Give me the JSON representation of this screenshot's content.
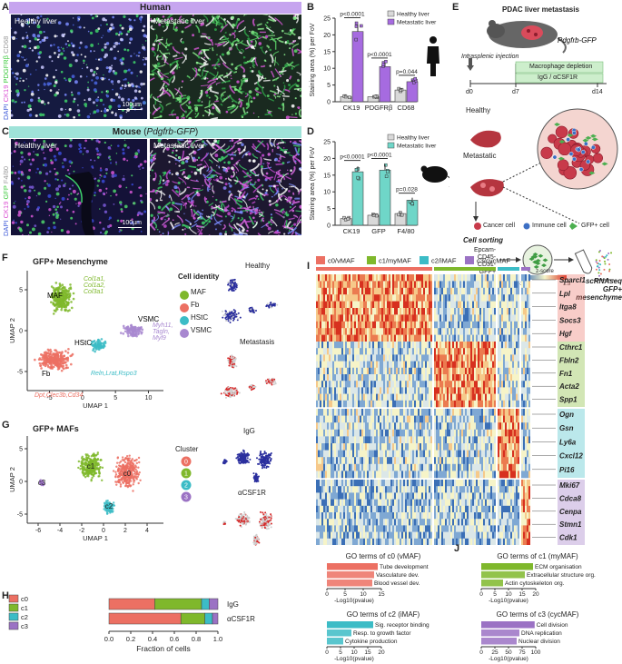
{
  "panels": {
    "A": "A",
    "B": "B",
    "C": "C",
    "D": "D",
    "E": "E",
    "F": "F",
    "G": "G",
    "H": "H",
    "I": "I",
    "J": "J"
  },
  "human": {
    "title": "Human",
    "healthy": "Healthy liver",
    "metastatic": "Metastatic liver",
    "scale": "100µm",
    "channels": [
      "DAPI",
      "CK19",
      "PDGFRβ",
      "CD68"
    ]
  },
  "mouse": {
    "title": "Mouse (Pdgfrb-GFP)",
    "healthy": "Healthy liver",
    "metastatic": "Metastatic liver",
    "scale": "100µm",
    "channels": [
      "DAPI",
      "CK19",
      "GFP",
      "F4/80"
    ]
  },
  "colors": {
    "healthy": "#d9d9d9",
    "metastatic_h": "#a66be0",
    "metastatic_m": "#6fd6c8",
    "vmaf": "#ec7063",
    "mymaf": "#7fb82c",
    "imaf": "#3cbcc6",
    "cycmaf": "#9b72c4",
    "vsmc": "#a888d0"
  },
  "chart_data": [
    {
      "type": "bar",
      "panel": "B",
      "ylabel": "Staining area (%) per FoV",
      "ylim": [
        0,
        25
      ],
      "yticks": [
        0,
        5,
        10,
        15,
        20,
        25
      ],
      "categories": [
        "CK19",
        "PDGFRβ",
        "CD68"
      ],
      "series": [
        {
          "name": "Healthy liver",
          "values": [
            1.5,
            1.5,
            3.5
          ]
        },
        {
          "name": "Metastatic liver",
          "values": [
            21,
            10.5,
            6
          ]
        }
      ],
      "pvalues": [
        "p<0.0001",
        "p<0.0001",
        "p=0.044"
      ]
    },
    {
      "type": "bar",
      "panel": "D",
      "ylabel": "Staining area (%) per FoV",
      "ylim": [
        0,
        25
      ],
      "yticks": [
        0,
        5,
        10,
        15,
        20,
        25
      ],
      "categories": [
        "CK19",
        "GFP",
        "F4/80"
      ],
      "series": [
        {
          "name": "Healthy liver",
          "values": [
            2,
            3,
            3.5
          ]
        },
        {
          "name": "Metastatic liver",
          "values": [
            16,
            16.5,
            7.5
          ]
        }
      ],
      "pvalues": [
        "p<0.0001",
        "p<0.0001",
        "p=0.028"
      ]
    },
    {
      "type": "bar",
      "panel": "H",
      "xlabel": "Fraction of cells",
      "xlim": [
        0,
        1
      ],
      "xticks": [
        "0.0",
        "0.2",
        "0.4",
        "0.6",
        "0.8",
        "1.0"
      ],
      "categories": [
        "IgG",
        "αCSF1R"
      ],
      "series": [
        {
          "name": "c0",
          "values": [
            0.42,
            0.66
          ]
        },
        {
          "name": "c1",
          "values": [
            0.43,
            0.22
          ]
        },
        {
          "name": "c2",
          "values": [
            0.07,
            0.07
          ]
        },
        {
          "name": "c3",
          "values": [
            0.08,
            0.05
          ]
        }
      ]
    },
    {
      "type": "bar",
      "panel": "J",
      "title": "GO terms of c0 (vMAF)",
      "xlabel": "-Log10(pvalue)",
      "xticks": [
        "0",
        "5",
        "10",
        "15"
      ],
      "xlim": [
        0,
        15
      ],
      "categories": [
        "Tube development",
        "Vasculature dev.",
        "Blood vessel dev."
      ],
      "values": [
        14,
        13,
        12.5
      ]
    },
    {
      "type": "bar",
      "panel": "J",
      "title": "GO terms of c1 (myMAF)",
      "xlabel": "-Log10(pvalue)",
      "xticks": [
        "0",
        "5",
        "10",
        "15",
        "20"
      ],
      "xlim": [
        0,
        20
      ],
      "categories": [
        "ECM organisation",
        "Extracellular structure org.",
        "Actin cytoskeleton org."
      ],
      "values": [
        19,
        16,
        8
      ]
    },
    {
      "type": "bar",
      "panel": "J",
      "title": "GO terms of c2 (iMAF)",
      "xlabel": "-Log10(pvalue)",
      "xticks": [
        "0",
        "5",
        "10",
        "15",
        "20"
      ],
      "xlim": [
        0,
        20
      ],
      "categories": [
        "Sig. receptor binding",
        "Resp. to growth factor",
        "Cytokine production"
      ],
      "values": [
        17,
        9,
        6
      ]
    },
    {
      "type": "bar",
      "panel": "J",
      "title": "GO terms of c3 (cycMAF)",
      "xlabel": "-Log10(pvalue)",
      "xticks": [
        "0",
        "25",
        "50",
        "75",
        "100"
      ],
      "xlim": [
        0,
        100
      ],
      "categories": [
        "Cell division",
        "DNA replication",
        "Nuclear division"
      ],
      "values": [
        98,
        70,
        65
      ]
    }
  ],
  "E": {
    "title": "PDAC liver metastasis",
    "mouse": "Pdgfrb-GFP",
    "injection": "Intrasplenic injection",
    "depletion": "Macrophage depletion",
    "treatment": "IgG / αCSF1R",
    "d0": "d0",
    "d7": "d7",
    "d14": "d14",
    "healthy": "Healthy",
    "metastatic": "Metastatic",
    "legend": [
      "Cancer cell",
      "Immune cell",
      "GFP+ cell"
    ],
    "sorting": "Cell sorting",
    "gates": [
      "Epcam-",
      "CD45-",
      "CD31-",
      "GFP+"
    ],
    "scrna": "scRNAseq",
    "scrna2": "GFP+ mesenchyme"
  },
  "F": {
    "title": "GFP+ Mesenchyme",
    "xlabel": "UMAP 1",
    "ylabel": "UMAP 2",
    "legend_title": "Cell identity",
    "legend": [
      "MAF",
      "Fb",
      "HStC",
      "VSMC"
    ],
    "genes_maf": [
      "Col1a1,",
      "Col1a2,",
      "Col3a1"
    ],
    "genes_vsmc": [
      "Myh11,",
      "Tagln,",
      "Myl9"
    ],
    "genes_hstc": "Reln,Lrat,Rspo3",
    "genes_fb": "Dpt,Clec3b,Cd34",
    "clusters": [
      "MAF",
      "VSMC",
      "HStC",
      "Fb"
    ],
    "xticks": [
      "-5",
      "0",
      "5",
      "10"
    ],
    "yticks": [
      "5",
      "0",
      "-5"
    ],
    "side": [
      "Healthy",
      "Metastasis"
    ]
  },
  "G": {
    "title": "GFP+ MAFs",
    "xlabel": "UMAP 1",
    "ylabel": "UMAP 2",
    "legend_title": "Cluster",
    "legend": [
      "0",
      "1",
      "2",
      "3"
    ],
    "labels": [
      "c0",
      "c1",
      "c2",
      "c3"
    ],
    "xticks": [
      "-6",
      "-4",
      "-2",
      "0",
      "2",
      "4"
    ],
    "yticks": [
      "5",
      "0",
      "-5"
    ],
    "side": [
      "IgG",
      "αCSF1R"
    ]
  },
  "I": {
    "groups": [
      "c0/vMAF",
      "c1/myMAF",
      "c2/iMAF",
      "c3/cycMAF"
    ],
    "zscore": "z-score",
    "zmin": "-1.5",
    "zmax": "1.5",
    "genes": [
      [
        "Sparcl1",
        "Lpl",
        "Itga8",
        "Socs3",
        "Hgf"
      ],
      [
        "Cthrc1",
        "Fbln2",
        "Fn1",
        "Acta2",
        "Spp1"
      ],
      [
        "Ogn",
        "Gsn",
        "Ly6a",
        "Cxcl12",
        "Pi16"
      ],
      [
        "Mki67",
        "Cdca8",
        "Cenpa",
        "Stmn1",
        "Cdk1"
      ]
    ]
  }
}
